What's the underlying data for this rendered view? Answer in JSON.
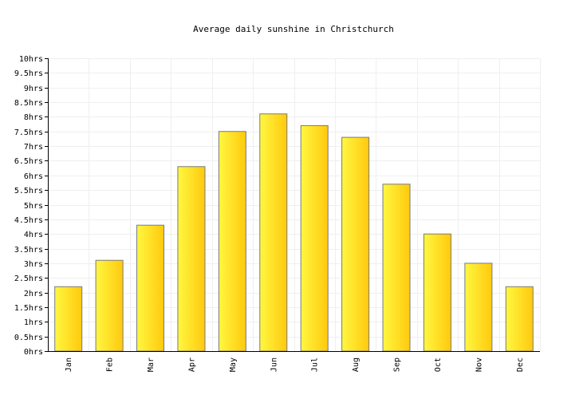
{
  "chart_data": {
    "type": "bar",
    "title": "Average daily sunshine in Christchurch",
    "xlabel": "",
    "ylabel": "",
    "categories": [
      "Jan",
      "Feb",
      "Mar",
      "Apr",
      "May",
      "Jun",
      "Jul",
      "Aug",
      "Sep",
      "Oct",
      "Nov",
      "Dec"
    ],
    "values": [
      2.2,
      3.1,
      4.3,
      6.3,
      7.5,
      8.1,
      7.7,
      7.3,
      5.7,
      4.0,
      3.0,
      2.2
    ],
    "ylim": [
      0,
      10
    ],
    "y_ticks": [
      "0hrs",
      "0.5hrs",
      "1hrs",
      "1.5hrs",
      "2hrs",
      "2.5hrs",
      "3hrs",
      "3.5hrs",
      "4hrs",
      "4.5hrs",
      "5hrs",
      "5.5hrs",
      "6hrs",
      "6.5hrs",
      "7hrs",
      "7.5hrs",
      "8hrs",
      "8.5hrs",
      "9hrs",
      "9.5hrs",
      "10hrs"
    ],
    "grid": true,
    "legend": "none",
    "colors": {
      "bar_light": "#fff740",
      "bar_dark": "#ffc90e",
      "bar_stroke": "#7a7a7a",
      "grid": "#efefef",
      "axis": "#000000"
    }
  }
}
